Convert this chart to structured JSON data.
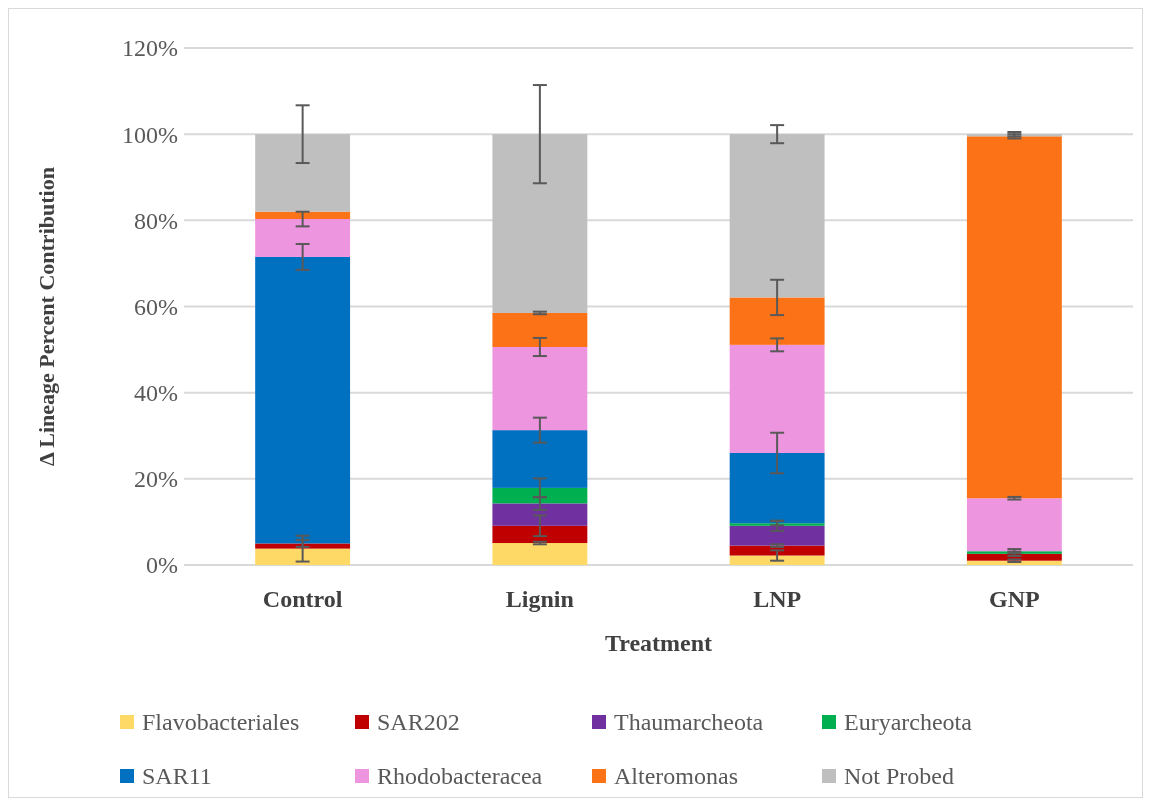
{
  "chart_data": {
    "type": "bar",
    "stacked": true,
    "xlabel": "Treatment",
    "ylabel": "Δ Lineage Percent Contribution",
    "categories": [
      "Control",
      "Lignin",
      "LNP",
      "GNP"
    ],
    "ylim": [
      0,
      120
    ],
    "yticks": [
      {
        "value": 0,
        "label": "0%"
      },
      {
        "value": 20,
        "label": "20%"
      },
      {
        "value": 40,
        "label": "40%"
      },
      {
        "value": 60,
        "label": "60%"
      },
      {
        "value": 80,
        "label": "80%"
      },
      {
        "value": 100,
        "label": "100%"
      },
      {
        "value": 120,
        "label": "120%"
      }
    ],
    "grid": "y",
    "legend": "bottom",
    "series": [
      {
        "name": "Flavobacteriales",
        "color": "#ffd966",
        "values": [
          3.8,
          5.1,
          2.2,
          1.0
        ],
        "errors": [
          3,
          0.3,
          1.2,
          0.3
        ]
      },
      {
        "name": "SAR202",
        "color": "#c00000",
        "values": [
          1.2,
          4.0,
          2.3,
          1.6
        ],
        "errors": [
          0.8,
          2.4,
          0.3,
          0.5
        ]
      },
      {
        "name": "Thaumarcheota",
        "color": "#7030a0",
        "values": [
          0,
          5.2,
          4.6,
          0
        ],
        "errors": [
          null,
          1.5,
          1.2,
          null
        ]
      },
      {
        "name": "Euryarcheota",
        "color": "#00b050",
        "values": [
          0,
          3.6,
          0.6,
          0.6
        ],
        "errors": [
          null,
          2.2,
          0.5,
          0.5
        ]
      },
      {
        "name": "SAR11",
        "color": "#0070c0",
        "values": [
          66.5,
          13.4,
          16.3,
          0
        ],
        "errors": [
          3,
          2.9,
          4.7,
          null
        ]
      },
      {
        "name": "Rhodobacteracea",
        "color": "#ee95e0",
        "values": [
          8.8,
          19.3,
          25.1,
          12.3
        ],
        "errors": [
          1.7,
          2.1,
          1.5,
          0.3
        ]
      },
      {
        "name": "Alteromonas",
        "color": "#fc7216",
        "values": [
          1.7,
          7.9,
          11.0,
          84.0
        ],
        "errors": [
          null,
          0.3,
          4.1,
          0.5
        ]
      },
      {
        "name": "Not Probed",
        "color": "#bfbfbf",
        "values": [
          18.0,
          41.5,
          37.9,
          0.5
        ],
        "errors": [
          6.7,
          11.4,
          2.1,
          0.5
        ]
      }
    ]
  }
}
